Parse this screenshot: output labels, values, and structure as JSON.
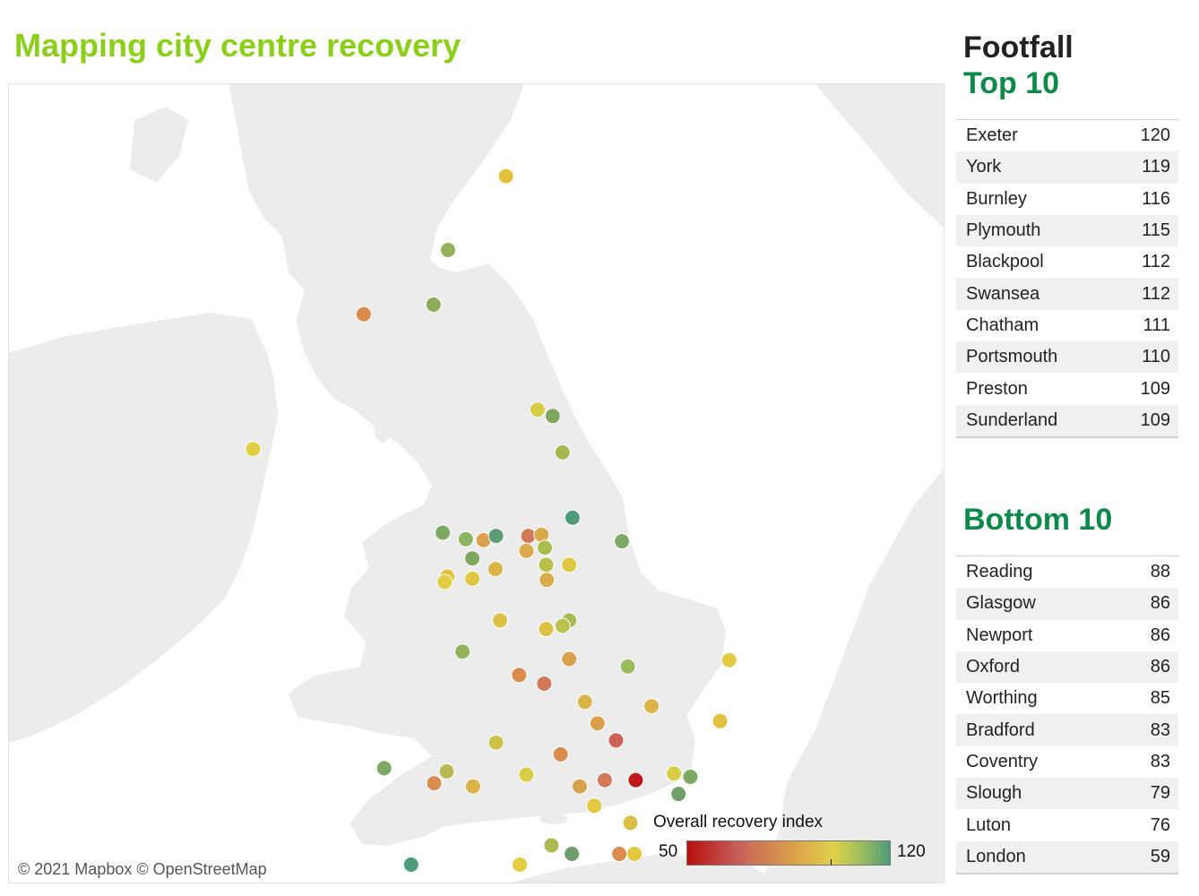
{
  "title": "Mapping city centre recovery",
  "attribution": "© 2021 Mapbox © OpenStreetMap",
  "legend": {
    "title": "Overall recovery index",
    "min": "50",
    "max": "120",
    "min_value": 50,
    "max_value": 120,
    "colors": [
      "#b70e0e",
      "#c6605a",
      "#d99b4b",
      "#e0d04a",
      "#9cbd5e",
      "#4f9a7a"
    ]
  },
  "panel": {
    "heading": "Footfall",
    "top_heading": "Top 10",
    "bottom_heading": "Bottom 10"
  },
  "top10": [
    {
      "city": "Exeter",
      "value": "120"
    },
    {
      "city": "York",
      "value": "119"
    },
    {
      "city": "Burnley",
      "value": "116"
    },
    {
      "city": "Plymouth",
      "value": "115"
    },
    {
      "city": "Blackpool",
      "value": "112"
    },
    {
      "city": "Swansea",
      "value": "112"
    },
    {
      "city": "Chatham",
      "value": "111"
    },
    {
      "city": "Portsmouth",
      "value": "110"
    },
    {
      "city": "Preston",
      "value": "109"
    },
    {
      "city": "Sunderland",
      "value": "109"
    }
  ],
  "bottom10": [
    {
      "city": "Reading",
      "value": "88"
    },
    {
      "city": "Glasgow",
      "value": "86"
    },
    {
      "city": "Newport",
      "value": "86"
    },
    {
      "city": "Oxford",
      "value": "86"
    },
    {
      "city": "Worthing",
      "value": "85"
    },
    {
      "city": "Bradford",
      "value": "83"
    },
    {
      "city": "Coventry",
      "value": "83"
    },
    {
      "city": "Slough",
      "value": "79"
    },
    {
      "city": "Luton",
      "value": "76"
    },
    {
      "city": "London",
      "value": "59"
    }
  ],
  "city_markers": [
    {
      "lon": -2.09,
      "lat": 57.15,
      "color": "#e2c13f"
    },
    {
      "lon": -2.97,
      "lat": 56.46,
      "color": "#97b25c"
    },
    {
      "lon": -3.19,
      "lat": 55.95,
      "color": "#8ead5a"
    },
    {
      "lon": -4.25,
      "lat": 55.86,
      "color": "#d98c4e"
    },
    {
      "lon": -5.93,
      "lat": 54.6,
      "color": "#e2cf42"
    },
    {
      "lon": -1.61,
      "lat": 54.97,
      "color": "#d8cb45"
    },
    {
      "lon": -1.38,
      "lat": 54.91,
      "color": "#7fa65c"
    },
    {
      "lon": -1.23,
      "lat": 54.57,
      "color": "#a7b84f"
    },
    {
      "lon": -1.08,
      "lat": 53.96,
      "color": "#4f9a7a"
    },
    {
      "lon": -0.33,
      "lat": 53.74,
      "color": "#7ea962"
    },
    {
      "lon": -3.05,
      "lat": 53.82,
      "color": "#7ea962"
    },
    {
      "lon": -2.7,
      "lat": 53.76,
      "color": "#8db45e"
    },
    {
      "lon": -2.43,
      "lat": 53.75,
      "color": "#d9a14c"
    },
    {
      "lon": -2.24,
      "lat": 53.79,
      "color": "#5e9c76"
    },
    {
      "lon": -1.75,
      "lat": 53.79,
      "color": "#d07a58"
    },
    {
      "lon": -1.55,
      "lat": 53.8,
      "color": "#d8ab4a"
    },
    {
      "lon": -1.78,
      "lat": 53.65,
      "color": "#d9ab4a"
    },
    {
      "lon": -1.5,
      "lat": 53.68,
      "color": "#a8bc52"
    },
    {
      "lon": -2.6,
      "lat": 53.58,
      "color": "#7fa65c"
    },
    {
      "lon": -2.25,
      "lat": 53.48,
      "color": "#dab448"
    },
    {
      "lon": -1.48,
      "lat": 53.52,
      "color": "#b8c04c"
    },
    {
      "lon": -1.13,
      "lat": 53.52,
      "color": "#e0c743"
    },
    {
      "lon": -2.98,
      "lat": 53.41,
      "color": "#e2c13f"
    },
    {
      "lon": -3.02,
      "lat": 53.36,
      "color": "#e2cd42"
    },
    {
      "lon": -2.6,
      "lat": 53.39,
      "color": "#e0c743"
    },
    {
      "lon": -1.47,
      "lat": 53.38,
      "color": "#d9ab4a"
    },
    {
      "lon": -1.13,
      "lat": 53.0,
      "color": "#a8bc52"
    },
    {
      "lon": -2.18,
      "lat": 53.0,
      "color": "#dbc045"
    },
    {
      "lon": -1.48,
      "lat": 52.92,
      "color": "#dbc045"
    },
    {
      "lon": -1.23,
      "lat": 52.95,
      "color": "#b9c24c"
    },
    {
      "lon": -2.75,
      "lat": 52.71,
      "color": "#97b25c"
    },
    {
      "lon": -1.13,
      "lat": 52.64,
      "color": "#d9a14c"
    },
    {
      "lon": -0.24,
      "lat": 52.57,
      "color": "#9cbd5e"
    },
    {
      "lon": 1.3,
      "lat": 52.63,
      "color": "#e2cd42"
    },
    {
      "lon": -1.89,
      "lat": 52.49,
      "color": "#d98c4e"
    },
    {
      "lon": -1.51,
      "lat": 52.41,
      "color": "#d07a58"
    },
    {
      "lon": -0.89,
      "lat": 52.24,
      "color": "#dab448"
    },
    {
      "lon": 0.12,
      "lat": 52.2,
      "color": "#dab448"
    },
    {
      "lon": -0.7,
      "lat": 52.04,
      "color": "#d9a14c"
    },
    {
      "lon": 1.16,
      "lat": 52.06,
      "color": "#e2c13f"
    },
    {
      "lon": -0.42,
      "lat": 51.88,
      "color": "#cf6158"
    },
    {
      "lon": -2.24,
      "lat": 51.86,
      "color": "#cdc24a"
    },
    {
      "lon": -1.26,
      "lat": 51.75,
      "color": "#d98c4e"
    },
    {
      "lon": -3.94,
      "lat": 51.62,
      "color": "#7ea962"
    },
    {
      "lon": -3.18,
      "lat": 51.48,
      "color": "#d98c4e"
    },
    {
      "lon": -2.99,
      "lat": 51.59,
      "color": "#b7b951"
    },
    {
      "lon": -2.59,
      "lat": 51.45,
      "color": "#dab448"
    },
    {
      "lon": -1.78,
      "lat": 51.56,
      "color": "#d8cb45"
    },
    {
      "lon": -0.97,
      "lat": 51.45,
      "color": "#d9a14c"
    },
    {
      "lon": -0.59,
      "lat": 51.51,
      "color": "#d07a58"
    },
    {
      "lon": -0.12,
      "lat": 51.51,
      "color": "#c0171b"
    },
    {
      "lon": 0.46,
      "lat": 51.57,
      "color": "#d8cb45"
    },
    {
      "lon": 0.71,
      "lat": 51.54,
      "color": "#7ea962"
    },
    {
      "lon": 0.53,
      "lat": 51.38,
      "color": "#6f9e6a"
    },
    {
      "lon": -0.75,
      "lat": 51.27,
      "color": "#e2c840"
    },
    {
      "lon": -0.2,
      "lat": 51.11,
      "color": "#dbc045"
    },
    {
      "lon": -1.4,
      "lat": 50.9,
      "color": "#aeb953"
    },
    {
      "lon": -1.09,
      "lat": 50.82,
      "color": "#6f9e6a"
    },
    {
      "lon": -1.88,
      "lat": 50.72,
      "color": "#e2cd42"
    },
    {
      "lon": -0.37,
      "lat": 50.82,
      "color": "#d98c4e"
    },
    {
      "lon": -0.14,
      "lat": 50.82,
      "color": "#e2c840"
    },
    {
      "lon": -3.53,
      "lat": 50.72,
      "color": "#4f9a7a"
    },
    {
      "lon": -4.14,
      "lat": 50.38,
      "color": "#5e9c76"
    }
  ]
}
